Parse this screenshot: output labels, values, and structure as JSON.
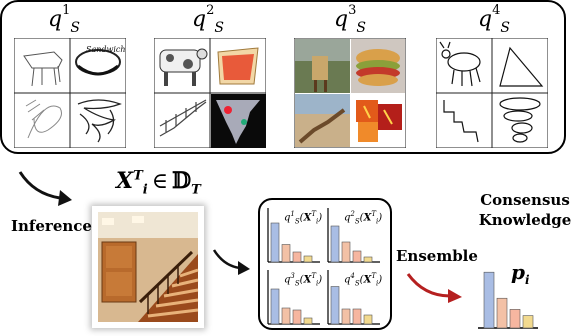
{
  "teachers": [
    {
      "label": "q",
      "sup": "1",
      "sub": "S"
    },
    {
      "label": "q",
      "sup": "2",
      "sub": "S"
    },
    {
      "label": "q",
      "sup": "3",
      "sub": "S"
    },
    {
      "label": "q",
      "sup": "4",
      "sub": "S"
    }
  ],
  "input": {
    "symbol": "X",
    "sup": "T",
    "sub": "i",
    "member": "∈",
    "domain": "𝔻",
    "domain_sub": "T"
  },
  "labels": {
    "inference": "Inference",
    "ensemble": "Ensemble",
    "consensus_line1": "Consensus",
    "consensus_line2": "Knowledge",
    "p": "p",
    "p_sub": "i"
  },
  "predictions": [
    {
      "q_sup": "1",
      "values": [
        0.78,
        0.35,
        0.2,
        0.12
      ],
      "fn": "q",
      "fn_sub": "S",
      "arg": "X",
      "arg_sup": "T",
      "arg_sub": "i"
    },
    {
      "q_sup": "2",
      "values": [
        0.72,
        0.4,
        0.22,
        0.1
      ],
      "fn": "q",
      "fn_sub": "S",
      "arg": "X",
      "arg_sup": "T",
      "arg_sub": "i"
    },
    {
      "q_sup": "3",
      "values": [
        0.7,
        0.32,
        0.28,
        0.12
      ],
      "fn": "q",
      "fn_sub": "S",
      "arg": "X",
      "arg_sup": "T",
      "arg_sub": "i"
    },
    {
      "q_sup": "4",
      "values": [
        0.75,
        0.3,
        0.3,
        0.18
      ],
      "fn": "q",
      "fn_sub": "S",
      "arg": "X",
      "arg_sup": "T",
      "arg_sub": "i"
    }
  ],
  "consensus_values": [
    0.9,
    0.48,
    0.3,
    0.2
  ],
  "colors": {
    "bar1": "#a9bde4",
    "bar2": "#f3c1a6",
    "bar3": "#f6b6a0",
    "bar4": "#f2da8f",
    "arrow": "#b52020"
  }
}
